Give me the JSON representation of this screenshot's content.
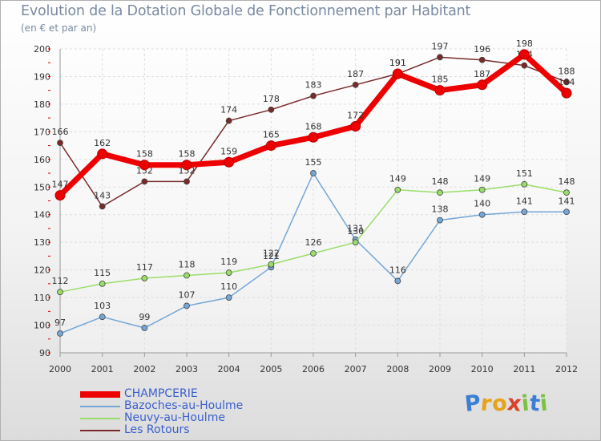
{
  "header": {
    "title": "Evolution de la Dotation Globale de Fonctionnement par Habitant",
    "subtitle": "(en € et par an)"
  },
  "logo": {
    "letters": [
      "P",
      "r",
      "o",
      "x",
      "i",
      "t",
      "i"
    ],
    "colors": [
      "#3a7fd5",
      "#e8a21a",
      "#e8a21a",
      "#d9412b",
      "#7cc242",
      "#3a7fd5",
      "#7cc242"
    ]
  },
  "chart_data": {
    "type": "line",
    "title": "Evolution de la Dotation Globale de Fonctionnement par Habitant",
    "subtitle": "(en € et par an)",
    "xlabel": "",
    "ylabel": "",
    "ylim": [
      90,
      200
    ],
    "yticks": [
      90,
      100,
      110,
      120,
      130,
      140,
      150,
      160,
      170,
      180,
      190,
      200
    ],
    "categories": [
      "2000",
      "2001",
      "2002",
      "2003",
      "2004",
      "2005",
      "2006",
      "2007",
      "2008",
      "2009",
      "2010",
      "2011",
      "2012"
    ],
    "grid": true,
    "legend_position": "bottom-left",
    "series": [
      {
        "name": "CHAMPCERIE",
        "color": "#ee0000",
        "values": [
          147,
          162,
          158,
          158,
          159,
          165,
          168,
          172,
          191,
          185,
          187,
          198,
          184
        ]
      },
      {
        "name": "Bazoches-au-Houlme",
        "color": "#74a6d6",
        "values": [
          97,
          103,
          99,
          107,
          110,
          121,
          155,
          131,
          116,
          138,
          140,
          141,
          141
        ]
      },
      {
        "name": "Neuvy-au-Houlme",
        "color": "#9ade6a",
        "values": [
          112,
          115,
          117,
          118,
          119,
          122,
          126,
          130,
          149,
          148,
          149,
          151,
          148
        ]
      },
      {
        "name": "Les Rotours",
        "color": "#7a2a2a",
        "values": [
          166,
          143,
          152,
          152,
          174,
          178,
          183,
          187,
          191,
          197,
          196,
          194,
          188
        ]
      }
    ]
  }
}
